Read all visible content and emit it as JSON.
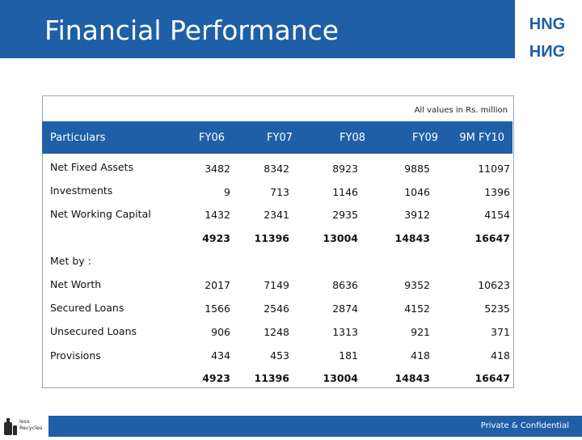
{
  "header": {
    "title": "Financial Performance"
  },
  "logo": {
    "top": "HNG",
    "bottom": "HNG"
  },
  "unit_note": "All values in Rs. million",
  "table": {
    "columns": [
      "Particulars",
      "FY06",
      "FY07",
      "FY08",
      "FY09",
      "9M FY10"
    ],
    "rows": [
      {
        "label": "Net Fixed Assets",
        "values": [
          "3482",
          "8342",
          "8923",
          "9885",
          "11097"
        ]
      },
      {
        "label": "Investments",
        "values": [
          "9",
          "713",
          "1146",
          "1046",
          "1396"
        ]
      },
      {
        "label": "Net Working Capital",
        "values": [
          "1432",
          "2341",
          "2935",
          "3912",
          "4154"
        ]
      },
      {
        "label": "",
        "values": [
          "4923",
          "11396",
          "13004",
          "14843",
          "16647"
        ]
      },
      {
        "label": "Met by :",
        "values": [
          "",
          "",
          "",
          "",
          ""
        ]
      },
      {
        "label": "Net Worth",
        "values": [
          "2017",
          "7149",
          "8636",
          "9352",
          "10623"
        ]
      },
      {
        "label": "Secured Loans",
        "values": [
          "1566",
          "2546",
          "2874",
          "4152",
          "5235"
        ]
      },
      {
        "label": "Unsecured Loans",
        "values": [
          "906",
          "1248",
          "1313",
          "921",
          "371"
        ]
      },
      {
        "label": "Provisions",
        "values": [
          "434",
          "453",
          "181",
          "418",
          "418"
        ]
      },
      {
        "label": "",
        "values": [
          "4923",
          "11396",
          "13004",
          "14843",
          "16647"
        ]
      }
    ]
  },
  "footer": {
    "logo_line1": "less",
    "logo_line2": "Recycles",
    "text": "Private & Confidential"
  },
  "colors": {
    "accent": "#1f5fa8"
  }
}
